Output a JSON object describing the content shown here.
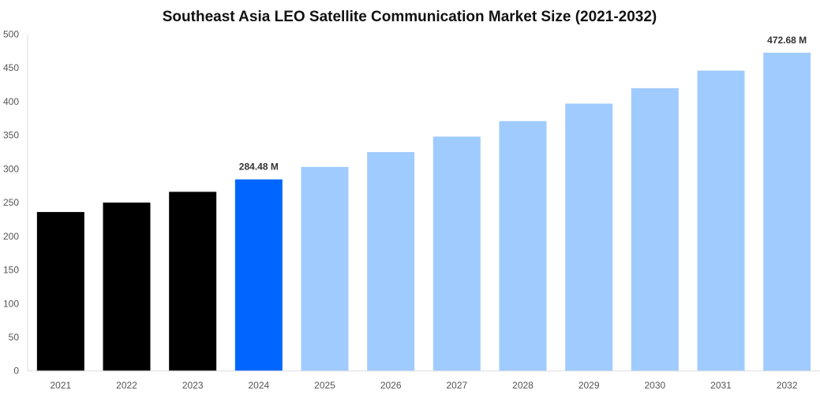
{
  "chart_data": {
    "type": "bar",
    "title": "Southeast Asia LEO Satellite Communication Market Size (2021-2032)",
    "xlabel": "",
    "ylabel": "",
    "categories": [
      "2021",
      "2022",
      "2023",
      "2024",
      "2025",
      "2026",
      "2027",
      "2028",
      "2029",
      "2030",
      "2031",
      "2032"
    ],
    "values": [
      236,
      250,
      266,
      284.48,
      303,
      325,
      348,
      371,
      397,
      420,
      446,
      472.68
    ],
    "bar_colors": [
      "#000000",
      "#000000",
      "#000000",
      "#0066ff",
      "#a0cbff",
      "#a0cbff",
      "#a0cbff",
      "#a0cbff",
      "#a0cbff",
      "#a0cbff",
      "#a0cbff",
      "#a0cbff"
    ],
    "data_labels": {
      "3": "284.48 M",
      "11": "472.68 M"
    },
    "ylim": [
      0,
      500
    ],
    "yticks": [
      "0",
      "50",
      "100",
      "150",
      "200",
      "250",
      "300",
      "350",
      "400",
      "450",
      "500"
    ],
    "grid": false,
    "legend": "none"
  }
}
